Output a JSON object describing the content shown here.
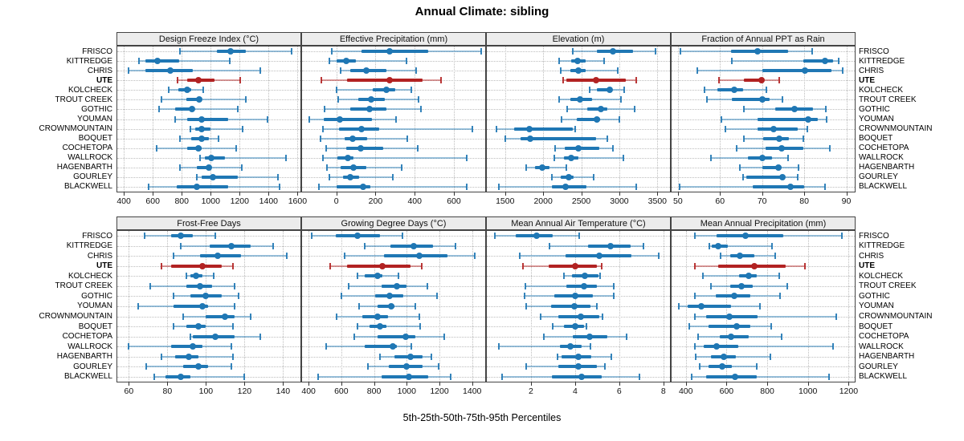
{
  "title": "Annual Climate: sibling",
  "caption": "5th-25th-50th-75th-95th Percentiles",
  "colors": {
    "series": "#1f77b4",
    "highlight": "#b22222",
    "strip_bg": "#ececec",
    "grid": "#bdbdbd",
    "border": "#444444"
  },
  "chart_data": {
    "type": "dotplot-percentiles",
    "percentile_order": [
      "5th",
      "25th",
      "50th",
      "75th",
      "95th"
    ],
    "highlight_site": "UTE",
    "rows": [
      "FRISCO",
      "KITTREDGE",
      "CHRIS",
      "UTE",
      "KOLCHECK",
      "TROUT CREEK",
      "GOTHIC",
      "YOUMAN",
      "CROWNMOUNTAIN",
      "BOQUET",
      "COCHETOPA",
      "WALLROCK",
      "HAGENBARTH",
      "GOURLEY",
      "BLACKWELL"
    ],
    "panels": [
      {
        "title": "Design Freeze Index (°C)",
        "band": 0,
        "col": 0,
        "xlim": [
          355,
          1620
        ],
        "ticks": [
          400,
          600,
          800,
          1000,
          1200,
          1400,
          1600
        ],
        "values": [
          [
            790,
            1045,
            1140,
            1240,
            1560
          ],
          [
            505,
            550,
            635,
            785,
            1130
          ],
          [
            430,
            550,
            720,
            875,
            1345
          ],
          [
            770,
            840,
            915,
            1025,
            1205
          ],
          [
            710,
            775,
            835,
            865,
            950
          ],
          [
            660,
            830,
            920,
            940,
            1240
          ],
          [
            645,
            755,
            870,
            885,
            1185
          ],
          [
            755,
            840,
            940,
            1120,
            1390
          ],
          [
            860,
            895,
            935,
            1000,
            1220
          ],
          [
            785,
            865,
            940,
            990,
            1055
          ],
          [
            625,
            840,
            915,
            940,
            1175
          ],
          [
            925,
            960,
            1005,
            1100,
            1520
          ],
          [
            785,
            905,
            990,
            1005,
            1215
          ],
          [
            905,
            940,
            1015,
            1185,
            1465
          ],
          [
            570,
            765,
            905,
            1120,
            1475
          ]
        ]
      },
      {
        "title": "Effective Precipitation (mm)",
        "band": 0,
        "col": 1,
        "xlim": [
          -175,
          760
        ],
        "ticks": [
          0,
          200,
          400,
          600
        ],
        "values": [
          [
            -25,
            130,
            270,
            470,
            740
          ],
          [
            -35,
            0,
            50,
            100,
            360
          ],
          [
            20,
            72,
            155,
            254,
            406
          ],
          [
            -75,
            55,
            272,
            442,
            536
          ],
          [
            3,
            185,
            256,
            300,
            384
          ],
          [
            10,
            113,
            178,
            246,
            420
          ],
          [
            -62,
            70,
            171,
            254,
            430
          ],
          [
            -138,
            -65,
            19,
            181,
            304
          ],
          [
            -68,
            12,
            130,
            217,
            696
          ],
          [
            -80,
            41,
            85,
            157,
            362
          ],
          [
            -54,
            51,
            123,
            239,
            417
          ],
          [
            -68,
            7,
            60,
            87,
            664
          ],
          [
            -46,
            22,
            87,
            152,
            333
          ],
          [
            -36,
            33,
            70,
            116,
            287
          ],
          [
            -90,
            0,
            138,
            174,
            667
          ]
        ]
      },
      {
        "title": "Elevation (m)",
        "band": 0,
        "col": 2,
        "xlim": [
          1260,
          3665
        ],
        "ticks": [
          1500,
          2000,
          2500,
          3000,
          3500
        ],
        "values": [
          [
            2390,
            2700,
            2920,
            3180,
            3475
          ],
          [
            2210,
            2372,
            2452,
            2555,
            2797
          ],
          [
            2234,
            2355,
            2459,
            2562,
            2983
          ],
          [
            2262,
            2303,
            2693,
            3086,
            3217
          ],
          [
            2614,
            2700,
            2872,
            2907,
            3062
          ],
          [
            2210,
            2355,
            2486,
            2638,
            3017
          ],
          [
            2314,
            2579,
            2759,
            2838,
            3200
          ],
          [
            2245,
            2441,
            2710,
            2752,
            3003
          ],
          [
            1390,
            1614,
            1814,
            2390,
            2424
          ],
          [
            1500,
            1700,
            1831,
            2693,
            2845
          ],
          [
            2155,
            2286,
            2466,
            2734,
            2917
          ],
          [
            2141,
            2269,
            2372,
            2459,
            3055
          ],
          [
            1776,
            1890,
            1986,
            2079,
            2303
          ],
          [
            2114,
            2228,
            2338,
            2397,
            2666
          ],
          [
            1417,
            2114,
            2297,
            2569,
            3224
          ]
        ]
      },
      {
        "title": "Fraction of Annual PPT as Rain",
        "band": 0,
        "col": 3,
        "xlim": [
          48.5,
          92
        ],
        "ticks": [
          50,
          60,
          70,
          80,
          90
        ],
        "values": [
          [
            50.6,
            62.7,
            68.9,
            76.1,
            81.9
          ],
          [
            62.9,
            79.8,
            85.0,
            86.8,
            88.1
          ],
          [
            54.6,
            70.1,
            80.1,
            86.5,
            89.2
          ],
          [
            59.7,
            65.7,
            69.8,
            70.3,
            74.0
          ],
          [
            56.4,
            59.3,
            63.4,
            65.5,
            71.0
          ],
          [
            56.8,
            62.9,
            70.1,
            71.7,
            74.9
          ],
          [
            65.7,
            73.1,
            77.7,
            82.0,
            85.1
          ],
          [
            60.3,
            68.9,
            81.0,
            83.3,
            85.4
          ],
          [
            61.2,
            68.9,
            72.8,
            78.4,
            80.8
          ],
          [
            65.7,
            70.3,
            74.0,
            76.4,
            79.8
          ],
          [
            63.9,
            70.9,
            74.6,
            79.8,
            86.0
          ],
          [
            57.8,
            66.6,
            70.1,
            72.4,
            76.2
          ],
          [
            64.8,
            70.1,
            73.8,
            74.4,
            78.7
          ],
          [
            65.5,
            66.3,
            74.8,
            75.2,
            78.4
          ],
          [
            50.5,
            67.7,
            76.8,
            79.9,
            84.9
          ]
        ]
      },
      {
        "title": "Frost-Free Days",
        "band": 1,
        "col": 0,
        "xlim": [
          54,
          149
        ],
        "ticks": [
          60,
          80,
          100,
          120,
          140
        ],
        "values": [
          [
            68,
            82,
            87,
            93,
            105
          ],
          [
            87,
            102,
            113,
            123,
            135
          ],
          [
            83,
            97,
            106,
            118,
            142
          ],
          [
            77,
            82,
            98,
            108,
            114
          ],
          [
            90,
            92,
            95,
            98,
            104
          ],
          [
            71,
            90,
            97,
            103,
            115
          ],
          [
            83,
            92,
            100,
            108,
            117
          ],
          [
            65,
            83,
            98,
            101,
            115
          ],
          [
            88,
            100,
            110,
            115,
            123
          ],
          [
            83,
            90,
            96,
            100,
            114
          ],
          [
            92,
            93,
            105,
            115,
            128
          ],
          [
            60,
            82,
            93,
            98,
            113
          ],
          [
            77,
            84,
            91,
            96,
            114
          ],
          [
            69,
            88,
            96,
            101,
            113
          ],
          [
            73,
            79,
            87,
            92,
            120
          ]
        ]
      },
      {
        "title": "Growing Degree Days (°C)",
        "band": 1,
        "col": 1,
        "xlim": [
          360,
          1480
        ],
        "ticks": [
          400,
          600,
          800,
          1000,
          1200,
          1400
        ],
        "values": [
          [
            420,
            565,
            700,
            835,
            975
          ],
          [
            745,
            900,
            1045,
            1160,
            1300
          ],
          [
            620,
            860,
            1075,
            1250,
            1415
          ],
          [
            530,
            635,
            850,
            1025,
            1090
          ],
          [
            700,
            745,
            820,
            850,
            950
          ],
          [
            645,
            845,
            940,
            1000,
            1125
          ],
          [
            600,
            805,
            895,
            980,
            1185
          ],
          [
            710,
            820,
            905,
            925,
            1055
          ],
          [
            570,
            730,
            820,
            885,
            1075
          ],
          [
            700,
            775,
            835,
            875,
            1080
          ],
          [
            680,
            820,
            995,
            1055,
            1230
          ],
          [
            505,
            745,
            915,
            940,
            1030
          ],
          [
            835,
            925,
            1025,
            1095,
            1150
          ],
          [
            765,
            890,
            1000,
            1095,
            1195
          ],
          [
            460,
            845,
            1015,
            1130,
            1270
          ]
        ]
      },
      {
        "title": "Mean Annual Air Temperature (°C)",
        "band": 1,
        "col": 2,
        "xlim": [
          0,
          8.3
        ],
        "ticks": [
          2,
          4,
          6,
          8
        ],
        "values": [
          [
            0.35,
            1.3,
            2.25,
            3.0,
            4.2
          ],
          [
            2.85,
            4.6,
            5.6,
            6.5,
            7.1
          ],
          [
            1.5,
            3.55,
            5.1,
            6.55,
            7.8
          ],
          [
            1.65,
            2.8,
            4.0,
            5.0,
            5.2
          ],
          [
            3.5,
            3.85,
            4.45,
            5.05,
            5.15
          ],
          [
            1.75,
            3.6,
            4.4,
            5.0,
            5.75
          ],
          [
            1.7,
            3.05,
            4.0,
            4.8,
            5.75
          ],
          [
            1.8,
            2.9,
            3.95,
            4.7,
            5.0
          ],
          [
            2.45,
            3.25,
            4.25,
            5.1,
            5.25
          ],
          [
            3.0,
            3.5,
            4.0,
            4.4,
            4.5
          ],
          [
            2.6,
            3.9,
            4.65,
            5.45,
            6.35
          ],
          [
            0.55,
            3.3,
            3.8,
            4.3,
            4.7
          ],
          [
            3.2,
            3.4,
            4.15,
            4.75,
            5.65
          ],
          [
            1.8,
            3.25,
            4.15,
            5.0,
            5.35
          ],
          [
            0.7,
            2.95,
            4.3,
            5.2,
            6.9
          ]
        ]
      },
      {
        "title": "Mean Annual Precipitation (mm)",
        "band": 1,
        "col": 3,
        "xlim": [
          330,
          1230
        ],
        "ticks": [
          400,
          600,
          800,
          1000,
          1200
        ],
        "values": [
          [
            445,
            550,
            695,
            880,
            1165
          ],
          [
            515,
            527,
            560,
            605,
            825
          ],
          [
            570,
            620,
            665,
            735,
            840
          ],
          [
            445,
            557,
            738,
            890,
            985
          ],
          [
            483,
            662,
            710,
            748,
            860
          ],
          [
            522,
            620,
            672,
            728,
            900
          ],
          [
            446,
            548,
            636,
            715,
            863
          ],
          [
            365,
            410,
            475,
            623,
            765
          ],
          [
            446,
            501,
            614,
            754,
            1141
          ],
          [
            417,
            511,
            649,
            715,
            820
          ],
          [
            459,
            568,
            623,
            708,
            872
          ],
          [
            446,
            488,
            553,
            658,
            1125
          ],
          [
            449,
            525,
            588,
            645,
            816
          ],
          [
            468,
            511,
            580,
            627,
            750
          ],
          [
            430,
            501,
            643,
            748,
            1102
          ]
        ]
      }
    ]
  }
}
